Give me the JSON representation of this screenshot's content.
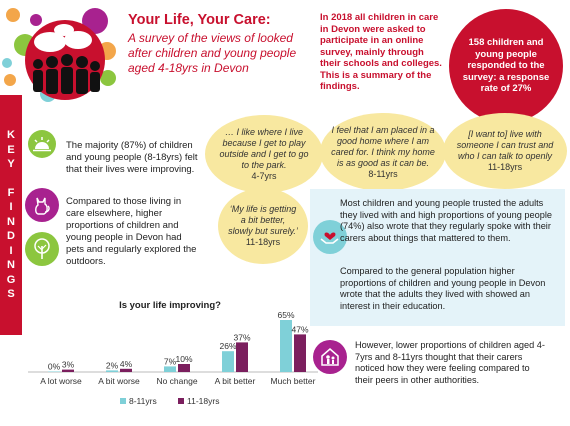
{
  "header": {
    "title": "Your Life, Your Care:",
    "subtitle": "A survey of the views of looked after children and young people aged 4-18yrs in Devon",
    "intro": "In 2018 all children in care in Devon were asked to participate in an online survey, mainly through their schools and colleges. This is a summary of the findings.",
    "stat": "158 children and young people responded to the survey: a response rate of 27%"
  },
  "banner": {
    "letters": [
      "K",
      "E",
      "Y",
      "",
      "F",
      "I",
      "N",
      "D",
      "I",
      "N",
      "G",
      "S"
    ]
  },
  "findings": {
    "improving": "The majority (87%) of children and young people (8-18yrs) felt that their lives were improving.",
    "pets": "Compared to those living in care elsewhere, higher proportions of children and young people in Devon had pets and regularly explored the outdoors.",
    "trusted": "Most children and young people trusted the adults they lived with and high proportions of young people (74%) also wrote that they regularly spoke with their carers about things that mattered to them.",
    "interest": "Compared to the general population higher proportions of children and young people in Devon wrote that the adults they lived with showed an interest in their education.",
    "feelings": "However, lower proportions of children aged 4-7yrs and 8-11yrs thought that their carers noticed how they were feeling compared to their peers in other authorities."
  },
  "quotes": [
    {
      "text": "… I like where I live because I get to play outside  and I get to go to the park.",
      "age": "4-7yrs"
    },
    {
      "text": "I feel that I am placed in a good home where I am cared for. I think my home is as good as it can be.",
      "age": "8-11yrs"
    },
    {
      "text": "[I want to] live with someone I can trust and who I can talk to openly",
      "age": "11-18yrs"
    },
    {
      "text": "‘My life is getting a bit better, slowly but surely.’",
      "age": "11-18yrs"
    }
  ],
  "colors": {
    "red": "#c8102e",
    "series1": "#7fd0d8",
    "series2": "#7b1f5e",
    "green": "#8cc63f",
    "purple": "#a8228f",
    "bubble": "#f8e8a0",
    "bluebox": "#e4f3f9"
  },
  "icons": [
    "group-silhouette-icon",
    "sunrise-icon",
    "cat-icon",
    "tree-icon",
    "hands-heart-icon",
    "family-home-icon"
  ],
  "chart_data": {
    "type": "bar",
    "title": "Is your life improving?",
    "categories": [
      "A lot worse",
      "A bit worse",
      "No change",
      "A bit better",
      "Much better"
    ],
    "series": [
      {
        "name": "8-11yrs",
        "values": [
          0,
          2,
          7,
          26,
          65
        ],
        "labels": [
          "0%",
          "2%",
          "7%",
          "26%",
          "65%"
        ]
      },
      {
        "name": "11-18yrs",
        "values": [
          3,
          4,
          10,
          37,
          47
        ],
        "labels": [
          "3%",
          "4%",
          "10%",
          "37%",
          "47%"
        ]
      }
    ],
    "ylim": [
      0,
      70
    ],
    "grid": false,
    "legend": "bottom"
  }
}
